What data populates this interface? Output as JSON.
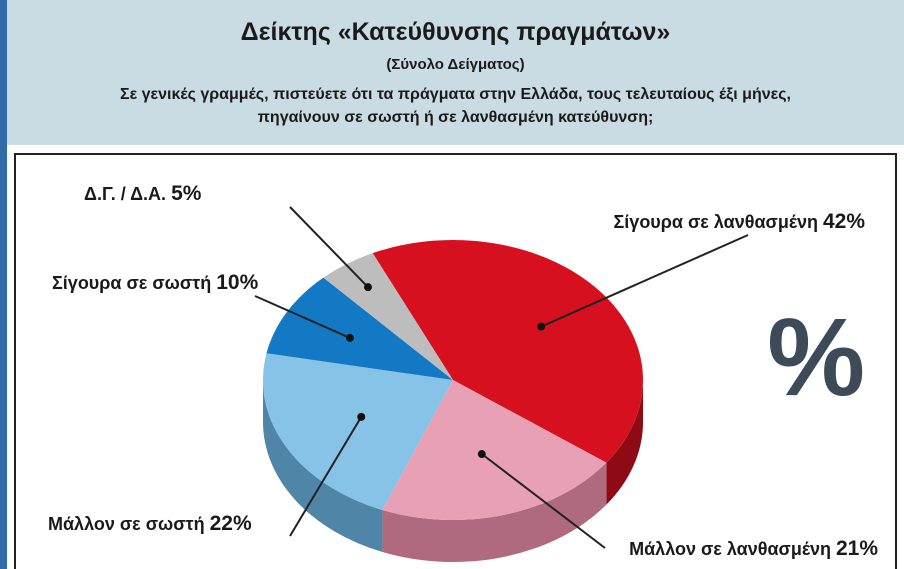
{
  "header": {
    "title": "Δείκτης «Κατεύθυνσης πραγμάτων»",
    "subtitle": "(Σύνολο Δείγματος)",
    "question_line1": "Σε γενικές γραμμές, πιστεύετε ότι τα πράγματα στην Ελλάδα, τους τελευταίους έξι μήνες,",
    "question_line2": "πηγαίνουν σε σωστή ή σε λανθασμένη κατεύθυνση;"
  },
  "unit_symbol": "%",
  "colors": {
    "header_bg": "#c9dbe3",
    "left_strip": "#2f6ca8"
  },
  "chart_data": {
    "type": "pie",
    "title": "Δείκτης «Κατεύθυνσης πραγμάτων»",
    "slices": [
      {
        "label": "Σίγουρα σε λανθασμένη",
        "value": 42,
        "value_text": "42%",
        "color": "#d6101e",
        "side": "#8e0a14"
      },
      {
        "label": "Μάλλον σε λανθασμένη",
        "value": 21,
        "value_text": "21%",
        "color": "#e8a0b4",
        "side": "#b06a80"
      },
      {
        "label": "Μάλλον σε σωστή",
        "value": 22,
        "value_text": "22%",
        "color": "#86c3e6",
        "side": "#4f86a8"
      },
      {
        "label": "Σίγουρα σε σωστή",
        "value": 10,
        "value_text": "10%",
        "color": "#1479c4",
        "side": "#0d4f82"
      },
      {
        "label": "Δ.Γ. / Δ.Α.",
        "value": 5,
        "value_text": "5%",
        "color": "#bdbdbd",
        "side": "#808080"
      }
    ]
  }
}
